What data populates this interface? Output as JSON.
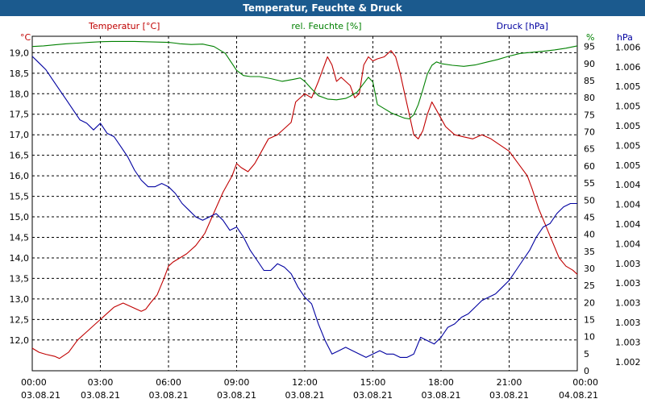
{
  "window": {
    "title": "Temperatur, Feuchte & Druck"
  },
  "colors": {
    "temperature": "#c00000",
    "humidity": "#008000",
    "pressure": "#0000a0",
    "grid": "#000000",
    "titlebar": "#1b5a8e"
  },
  "chart_data": {
    "type": "line",
    "title": "Temperatur, Feuchte & Druck",
    "xlim": [
      0,
      24
    ],
    "x_ticks": [
      {
        "x": 0,
        "time": "00:00",
        "date": "03.08.21"
      },
      {
        "x": 3,
        "time": "03:00",
        "date": "03.08.21"
      },
      {
        "x": 6,
        "time": "06:00",
        "date": "03.08.21"
      },
      {
        "x": 9,
        "time": "09:00",
        "date": "03.08.21"
      },
      {
        "x": 12,
        "time": "12:00",
        "date": "03.08.21"
      },
      {
        "x": 15,
        "time": "15:00",
        "date": "03.08.21"
      },
      {
        "x": 18,
        "time": "18:00",
        "date": "03.08.21"
      },
      {
        "x": 21,
        "time": "21:00",
        "date": "03.08.21"
      },
      {
        "x": 24,
        "time": "00:00",
        "date": "04.08.21"
      }
    ],
    "axes": {
      "temperature": {
        "unit": "°C",
        "label": "Temperatur [°C]",
        "ylim": [
          11.25,
          19.4
        ],
        "ticks": [
          "12,0",
          "12,5",
          "13,0",
          "13,5",
          "14,0",
          "14,5",
          "15,0",
          "15,5",
          "16,0",
          "16,5",
          "17,0",
          "17,5",
          "18,0",
          "18,5",
          "19,0"
        ],
        "tick_values": [
          12,
          12.5,
          13,
          13.5,
          14,
          14.5,
          15,
          15.5,
          16,
          16.5,
          17,
          17.5,
          18,
          18.5,
          19
        ]
      },
      "humidity": {
        "unit": "%",
        "label": "rel. Feuchte [%]",
        "ylim": [
          0,
          98
        ],
        "ticks": [
          "0",
          "5",
          "10",
          "15",
          "20",
          "25",
          "30",
          "35",
          "40",
          "45",
          "50",
          "55",
          "60",
          "65",
          "70",
          "75",
          "80",
          "85",
          "90",
          "95"
        ],
        "tick_values": [
          0,
          5,
          10,
          15,
          20,
          25,
          30,
          35,
          40,
          45,
          50,
          55,
          60,
          65,
          70,
          75,
          80,
          85,
          90,
          95
        ]
      },
      "pressure": {
        "unit": "hPa",
        "label": "Druck [hPa]",
        "ticks": [
          "1.002",
          "1.003",
          "1.003",
          "1.003",
          "1.003",
          "1.003",
          "1.004",
          "1.004",
          "1.004",
          "1.004",
          "1.005",
          "1.005",
          "1.005",
          "1.005",
          "1.005",
          "1.006",
          "1.006"
        ],
        "tick_fracs": [
          0.027,
          0.0858,
          0.1446,
          0.2034,
          0.2622,
          0.321,
          0.3798,
          0.4386,
          0.4974,
          0.5562,
          0.615,
          0.6738,
          0.7326,
          0.7914,
          0.8502,
          0.909,
          0.9678
        ]
      }
    },
    "series": [
      {
        "name": "Temperatur [°C]",
        "axis": "temperature",
        "x": [
          0,
          0.3,
          0.6,
          1.0,
          1.2,
          1.6,
          2.0,
          2.4,
          2.8,
          3.2,
          3.6,
          4.0,
          4.4,
          4.8,
          5.0,
          5.2,
          5.5,
          5.8,
          6.0,
          6.2,
          6.5,
          6.8,
          7.2,
          7.6,
          8.0,
          8.4,
          8.8,
          9.0,
          9.2,
          9.5,
          9.8,
          10.0,
          10.4,
          10.8,
          11.0,
          11.4,
          11.6,
          12.0,
          12.3,
          12.6,
          12.8,
          13.0,
          13.2,
          13.4,
          13.6,
          14.0,
          14.2,
          14.4,
          14.6,
          14.8,
          15.0,
          15.2,
          15.5,
          15.8,
          16.0,
          16.2,
          16.4,
          16.6,
          16.8,
          17.0,
          17.2,
          17.4,
          17.6,
          17.8,
          18.0,
          18.2,
          18.6,
          19.0,
          19.4,
          19.8,
          20.2,
          20.6,
          21.0,
          21.4,
          21.8,
          22.0,
          22.3,
          22.6,
          22.9,
          23.2,
          23.5,
          23.8,
          24.0
        ],
        "values": [
          11.8,
          11.7,
          11.65,
          11.6,
          11.55,
          11.7,
          12.0,
          12.2,
          12.4,
          12.6,
          12.8,
          12.9,
          12.8,
          12.7,
          12.75,
          12.9,
          13.1,
          13.5,
          13.8,
          13.9,
          14.0,
          14.1,
          14.3,
          14.6,
          15.1,
          15.6,
          16.0,
          16.3,
          16.2,
          16.1,
          16.3,
          16.5,
          16.9,
          17.0,
          17.1,
          17.3,
          17.8,
          18.0,
          17.9,
          18.3,
          18.6,
          18.9,
          18.7,
          18.3,
          18.4,
          18.2,
          17.9,
          18.0,
          18.7,
          18.9,
          18.8,
          18.85,
          18.9,
          19.05,
          18.9,
          18.5,
          18.0,
          17.5,
          17.0,
          16.9,
          17.1,
          17.5,
          17.8,
          17.6,
          17.4,
          17.2,
          17.0,
          16.95,
          16.9,
          17.0,
          16.9,
          16.75,
          16.6,
          16.3,
          16.0,
          15.7,
          15.2,
          14.8,
          14.4,
          14.0,
          13.8,
          13.7,
          13.6
        ]
      },
      {
        "name": "rel. Feuchte [%]",
        "axis": "humidity",
        "x": [
          0,
          0.5,
          1.0,
          1.5,
          2.0,
          2.5,
          3.0,
          3.5,
          4.0,
          4.5,
          5.0,
          5.5,
          6.0,
          6.3,
          6.5,
          7.0,
          7.5,
          8.0,
          8.5,
          9.0,
          9.3,
          9.6,
          10.0,
          10.5,
          11.0,
          11.5,
          11.8,
          12.0,
          12.3,
          12.6,
          13.0,
          13.4,
          13.8,
          14.0,
          14.3,
          14.6,
          14.8,
          15.0,
          15.2,
          15.5,
          15.8,
          16.0,
          16.4,
          16.6,
          16.8,
          17.0,
          17.2,
          17.4,
          17.6,
          17.8,
          18.0,
          18.5,
          19.0,
          19.5,
          20.0,
          20.5,
          21.0,
          21.5,
          22.0,
          22.5,
          23.0,
          23.5,
          24.0
        ],
        "values": [
          95,
          95.2,
          95.5,
          95.8,
          96,
          96.2,
          96.4,
          96.5,
          96.5,
          96.5,
          96.4,
          96.3,
          96.2,
          96,
          95.8,
          95.6,
          95.7,
          95,
          93,
          88,
          86.5,
          86.2,
          86.2,
          85.6,
          84.8,
          85.4,
          85.8,
          84.8,
          82.6,
          80.6,
          79.6,
          79.4,
          79.8,
          80.4,
          81.6,
          84.2,
          86.0,
          84.6,
          78.0,
          76.8,
          75.6,
          75.0,
          74.0,
          73.8,
          75.0,
          78.0,
          82.4,
          87.0,
          89.5,
          90.5,
          90.0,
          89.5,
          89.2,
          89.6,
          90.4,
          91.2,
          92.2,
          93.0,
          93.3,
          93.6,
          94.0,
          94.5,
          95.2
        ]
      },
      {
        "name": "Druck [hPa]",
        "axis": "pressure",
        "x": [
          0,
          0.3,
          0.6,
          0.9,
          1.2,
          1.5,
          1.8,
          2.1,
          2.4,
          2.7,
          3.0,
          3.3,
          3.6,
          3.9,
          4.2,
          4.5,
          4.8,
          5.1,
          5.4,
          5.7,
          6.0,
          6.3,
          6.6,
          6.9,
          7.2,
          7.5,
          7.8,
          8.1,
          8.4,
          8.7,
          9.0,
          9.3,
          9.6,
          9.9,
          10.2,
          10.5,
          10.8,
          11.1,
          11.4,
          11.7,
          12.0,
          12.3,
          12.6,
          12.9,
          13.2,
          13.5,
          13.8,
          14.1,
          14.4,
          14.7,
          15.0,
          15.3,
          15.6,
          15.9,
          16.2,
          16.5,
          16.8,
          17.1,
          17.4,
          17.7,
          18.0,
          18.3,
          18.6,
          18.9,
          19.2,
          19.5,
          19.8,
          20.1,
          20.4,
          20.7,
          21.0,
          21.3,
          21.6,
          21.9,
          22.2,
          22.5,
          22.8,
          23.1,
          23.4,
          23.7,
          24.0
        ],
        "fracs": [
          0.94,
          0.92,
          0.9,
          0.87,
          0.84,
          0.81,
          0.78,
          0.75,
          0.74,
          0.72,
          0.74,
          0.71,
          0.7,
          0.67,
          0.64,
          0.6,
          0.57,
          0.55,
          0.55,
          0.56,
          0.55,
          0.53,
          0.5,
          0.48,
          0.46,
          0.45,
          0.46,
          0.47,
          0.45,
          0.42,
          0.43,
          0.4,
          0.36,
          0.33,
          0.3,
          0.3,
          0.32,
          0.31,
          0.29,
          0.25,
          0.22,
          0.2,
          0.14,
          0.09,
          0.05,
          0.06,
          0.07,
          0.06,
          0.05,
          0.04,
          0.05,
          0.06,
          0.05,
          0.05,
          0.04,
          0.04,
          0.05,
          0.1,
          0.09,
          0.08,
          0.1,
          0.13,
          0.14,
          0.16,
          0.17,
          0.19,
          0.21,
          0.22,
          0.23,
          0.25,
          0.27,
          0.3,
          0.33,
          0.36,
          0.4,
          0.43,
          0.44,
          0.47,
          0.49,
          0.5,
          0.5
        ]
      }
    ]
  }
}
